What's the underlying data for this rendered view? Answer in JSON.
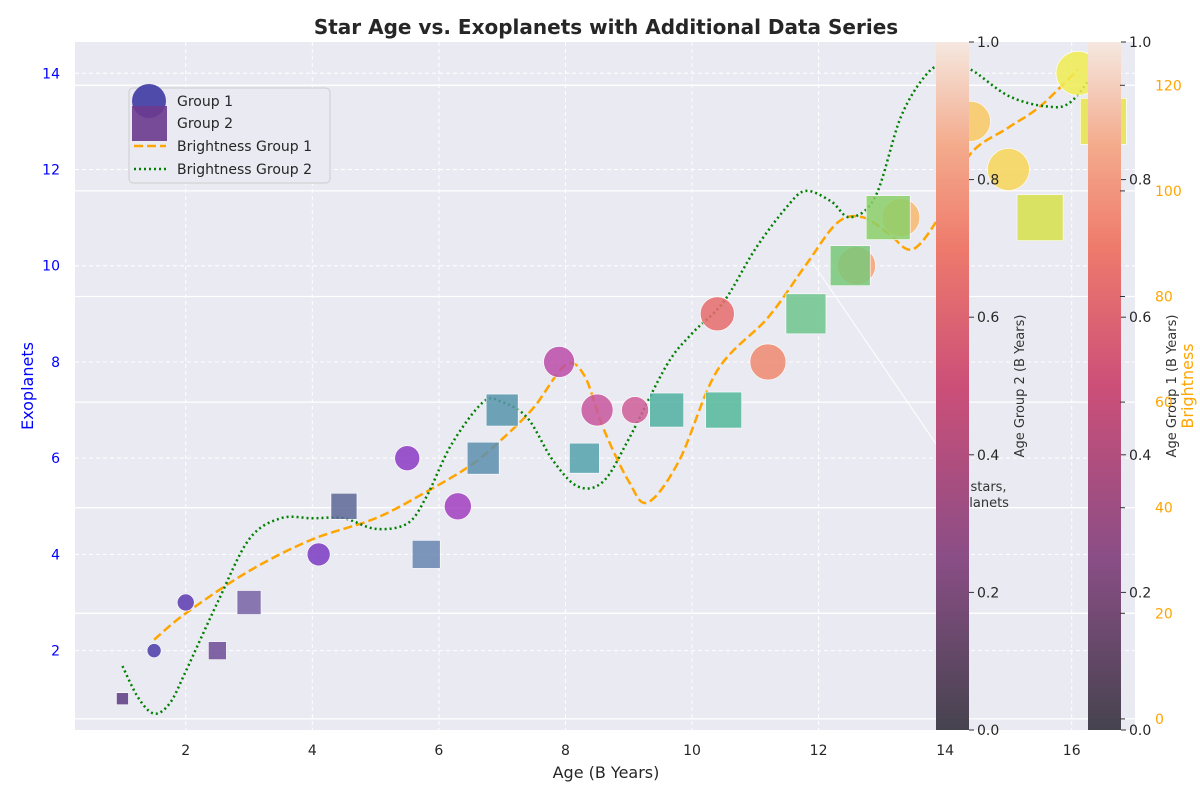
{
  "chart_data": {
    "type": "scatter",
    "title": "Star Age vs. Exoplanets with Additional Data Series",
    "xlabel": "Age (B Years)",
    "ylabel": "Exoplanets",
    "y2label": "Brightness",
    "xlim": [
      0.25,
      17.0
    ],
    "ylim": [
      0.35,
      14.65
    ],
    "y2lim": [
      -2.1,
      128.2
    ],
    "grid": true,
    "legend_position": "upper-left",
    "xticks": [
      "2",
      "4",
      "6",
      "8",
      "10",
      "12",
      "14",
      "16"
    ],
    "yticks": [
      "2",
      "4",
      "6",
      "8",
      "10",
      "12",
      "14"
    ],
    "y2ticks": [
      "0",
      "20",
      "40",
      "60",
      "80",
      "100",
      "120"
    ],
    "legend": [
      {
        "label": "Group 1",
        "marker": "circle",
        "color": "#3e3aa3"
      },
      {
        "label": "Group 2",
        "marker": "square",
        "color": "#6b3a8e"
      },
      {
        "label": "Brightness Group 1",
        "marker": "dashed-line",
        "color": "#ffa500"
      },
      {
        "label": "Brightness Group 2",
        "marker": "dotted-line",
        "color": "#008000"
      }
    ],
    "annotation": {
      "text_lines": [
        "r stars,",
        "planets"
      ]
    },
    "series": [
      {
        "name": "Group 1",
        "marker": "circle",
        "points": [
          {
            "x": 1.5,
            "y": 2,
            "color": "#4a3aa8",
            "size": 14
          },
          {
            "x": 2.0,
            "y": 3,
            "color": "#5b3ab0",
            "size": 17
          },
          {
            "x": 4.1,
            "y": 4,
            "color": "#7a3ac2",
            "size": 23
          },
          {
            "x": 5.5,
            "y": 6,
            "color": "#8b3ac6",
            "size": 25
          },
          {
            "x": 6.3,
            "y": 5,
            "color": "#a23ec0",
            "size": 27
          },
          {
            "x": 7.9,
            "y": 8,
            "color": "#bb4ca8",
            "size": 31
          },
          {
            "x": 8.5,
            "y": 7,
            "color": "#c8569e",
            "size": 32
          },
          {
            "x": 9.1,
            "y": 7,
            "color": "#cf5e98",
            "size": 27
          },
          {
            "x": 10.4,
            "y": 9,
            "color": "#e66b6c",
            "size": 34
          },
          {
            "x": 11.2,
            "y": 8,
            "color": "#ee8a70",
            "size": 36
          },
          {
            "x": 12.6,
            "y": 10,
            "color": "#f6a273",
            "size": 38
          },
          {
            "x": 13.3,
            "y": 11,
            "color": "#f8b870",
            "size": 38
          },
          {
            "x": 14.4,
            "y": 13,
            "color": "#f9c862",
            "size": 40
          },
          {
            "x": 15.0,
            "y": 12,
            "color": "#f7d657",
            "size": 42
          },
          {
            "x": 16.1,
            "y": 14,
            "color": "#f0ec52",
            "size": 44
          }
        ]
      },
      {
        "name": "Group 2",
        "marker": "square",
        "points": [
          {
            "x": 1.0,
            "y": 1,
            "color": "#5a3a84",
            "size": 12
          },
          {
            "x": 2.5,
            "y": 2,
            "color": "#6c4b96",
            "size": 18
          },
          {
            "x": 3.0,
            "y": 3,
            "color": "#7761a4",
            "size": 24
          },
          {
            "x": 4.5,
            "y": 5,
            "color": "#5d6796",
            "size": 26
          },
          {
            "x": 5.8,
            "y": 4,
            "color": "#6785b0",
            "size": 28
          },
          {
            "x": 6.7,
            "y": 6,
            "color": "#5c8fae",
            "size": 32
          },
          {
            "x": 7.0,
            "y": 7,
            "color": "#5795ab",
            "size": 32
          },
          {
            "x": 8.3,
            "y": 6,
            "color": "#55a2ac",
            "size": 30
          },
          {
            "x": 9.6,
            "y": 7,
            "color": "#4fb0a0",
            "size": 34
          },
          {
            "x": 10.5,
            "y": 7,
            "color": "#52b89a",
            "size": 36
          },
          {
            "x": 11.8,
            "y": 9,
            "color": "#6dc48d",
            "size": 40
          },
          {
            "x": 12.5,
            "y": 10,
            "color": "#78c878",
            "size": 40
          },
          {
            "x": 13.1,
            "y": 11,
            "color": "#8ccf6a",
            "size": 44
          },
          {
            "x": 15.5,
            "y": 11,
            "color": "#d6e04a",
            "size": 46
          },
          {
            "x": 16.5,
            "y": 13,
            "color": "#e8e44a",
            "size": 46
          }
        ]
      }
    ],
    "lines": [
      {
        "name": "Brightness Group 1",
        "color": "#ffa500",
        "style": "dashed",
        "x": [
          1.5,
          2.0,
          3.0,
          4.0,
          5.0,
          5.8,
          6.5,
          7.0,
          7.5,
          8.0,
          8.3,
          8.6,
          9.0,
          9.3,
          9.8,
          10.4,
          11.2,
          11.8,
          12.3,
          12.7,
          13.1,
          13.5,
          14.0,
          14.4,
          15.0,
          15.5,
          16.1
        ],
        "y": [
          15,
          20,
          28,
          34,
          38,
          43,
          48,
          53,
          59,
          67,
          65,
          55,
          45,
          41,
          49,
          66,
          76,
          86,
          94,
          95,
          92,
          89,
          97,
          107,
          112,
          116,
          123
        ]
      },
      {
        "name": "Brightness Group 2",
        "color": "#008000",
        "style": "dotted",
        "x": [
          1.0,
          1.25,
          1.5,
          1.75,
          2.0,
          2.5,
          3.0,
          3.5,
          4.0,
          4.5,
          5.0,
          5.5,
          5.8,
          6.2,
          6.7,
          7.0,
          7.4,
          7.8,
          8.2,
          8.6,
          9.0,
          9.6,
          10.0,
          10.5,
          11.0,
          11.5,
          11.8,
          12.2,
          12.5,
          12.9,
          13.3,
          13.7,
          14.0,
          14.4,
          15.0,
          15.6,
          16.0,
          16.5
        ],
        "y": [
          10,
          4,
          1,
          3,
          9,
          22,
          34,
          38,
          38,
          38,
          36,
          37,
          42,
          52,
          60,
          60,
          57,
          49,
          44,
          45,
          53,
          67,
          73,
          79,
          89,
          97,
          100,
          98,
          95,
          99,
          114,
          122,
          124,
          123,
          118,
          116,
          117,
          125
        ]
      }
    ],
    "colorbars": [
      {
        "label": "Age Group 2 (B Years)",
        "ticks": [
          "0.0",
          "0.2",
          "0.4",
          "0.6",
          "0.8",
          "1.0"
        ]
      },
      {
        "label": "Age Group 1 (B Years)",
        "ticks": [
          "0.0",
          "0.2",
          "0.4",
          "0.6",
          "0.8",
          "1.0"
        ]
      }
    ]
  }
}
